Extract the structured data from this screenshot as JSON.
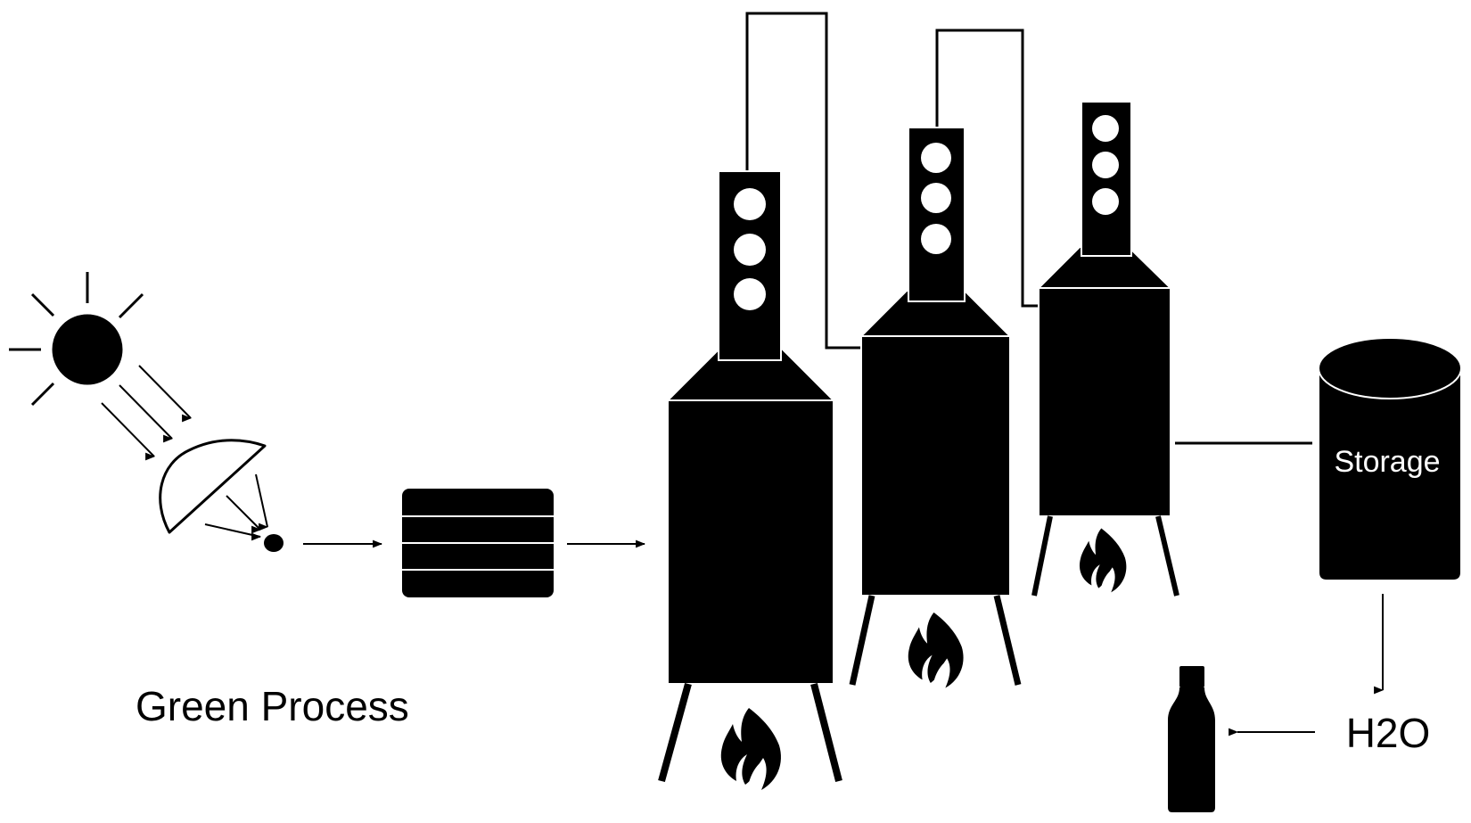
{
  "labels": {
    "process_title": "Green Process",
    "storage": "Storage",
    "water": "H2O"
  },
  "icons": {
    "sun": "sun-icon",
    "solar_dish": "solar-concentrator-icon",
    "collector": "heat-collector-icon",
    "flame": "flame-icon",
    "bottle": "bottle-icon",
    "storage_tank": "storage-tank-icon"
  },
  "colors": {
    "ink": "#000000",
    "paper": "#ffffff"
  }
}
